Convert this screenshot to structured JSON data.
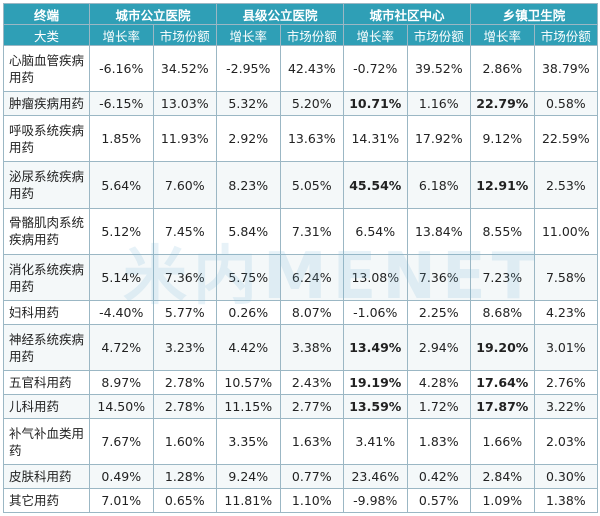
{
  "header": {
    "terminal_label": "终端",
    "category_label": "大类",
    "terminals": [
      "城市公立医院",
      "县级公立医院",
      "城市社区中心",
      "乡镇卫生院"
    ],
    "growth_label": "增长率",
    "share_label": "市场份额"
  },
  "watermark": "米内MENET",
  "rows": [
    {
      "category": "心脑血管疾病用药",
      "values": [
        "-6.16%",
        "34.52%",
        "-2.95%",
        "42.43%",
        "-0.72%",
        "39.52%",
        "2.86%",
        "38.79%"
      ],
      "bold": []
    },
    {
      "category": "肿瘤疾病用药",
      "values": [
        "-6.15%",
        "13.03%",
        "5.32%",
        "5.20%",
        "10.71%",
        "1.16%",
        "22.79%",
        "0.58%"
      ],
      "bold": [
        4,
        6
      ]
    },
    {
      "category": "呼吸系统疾病用药",
      "values": [
        "1.85%",
        "11.93%",
        "2.92%",
        "13.63%",
        "14.31%",
        "17.92%",
        "9.12%",
        "22.59%"
      ],
      "bold": []
    },
    {
      "category": "泌尿系统疾病用药",
      "values": [
        "5.64%",
        "7.60%",
        "8.23%",
        "5.05%",
        "45.54%",
        "6.18%",
        "12.91%",
        "2.53%"
      ],
      "bold": [
        4,
        6
      ]
    },
    {
      "category": "骨骼肌肉系统疾病用药",
      "values": [
        "5.12%",
        "7.45%",
        "5.84%",
        "7.31%",
        "6.54%",
        "13.84%",
        "8.55%",
        "11.00%"
      ],
      "bold": []
    },
    {
      "category": "消化系统疾病用药",
      "values": [
        "5.14%",
        "7.36%",
        "5.75%",
        "6.24%",
        "13.08%",
        "7.36%",
        "7.23%",
        "7.58%"
      ],
      "bold": []
    },
    {
      "category": "妇科用药",
      "values": [
        "-4.40%",
        "5.77%",
        "0.26%",
        "8.07%",
        "-1.06%",
        "2.25%",
        "8.68%",
        "4.23%"
      ],
      "bold": []
    },
    {
      "category": "神经系统疾病用药",
      "values": [
        "4.72%",
        "3.23%",
        "4.42%",
        "3.38%",
        "13.49%",
        "2.94%",
        "19.20%",
        "3.01%"
      ],
      "bold": [
        4,
        6
      ]
    },
    {
      "category": "五官科用药",
      "values": [
        "8.97%",
        "2.78%",
        "10.57%",
        "2.43%",
        "19.19%",
        "4.28%",
        "17.64%",
        "2.76%"
      ],
      "bold": [
        4,
        6
      ]
    },
    {
      "category": "儿科用药",
      "values": [
        "14.50%",
        "2.78%",
        "11.15%",
        "2.77%",
        "13.59%",
        "1.72%",
        "17.87%",
        "3.22%"
      ],
      "bold": [
        4,
        6
      ]
    },
    {
      "category": "补气补血类用药",
      "values": [
        "7.67%",
        "1.60%",
        "3.35%",
        "1.63%",
        "3.41%",
        "1.83%",
        "1.66%",
        "2.03%"
      ],
      "bold": []
    },
    {
      "category": "皮肤科用药",
      "values": [
        "0.49%",
        "1.28%",
        "9.24%",
        "0.77%",
        "23.46%",
        "0.42%",
        "2.84%",
        "0.30%"
      ],
      "bold": []
    },
    {
      "category": "其它用药",
      "values": [
        "7.01%",
        "0.65%",
        "11.81%",
        "1.10%",
        "-9.98%",
        "0.57%",
        "1.09%",
        "1.38%"
      ],
      "bold": []
    }
  ]
}
